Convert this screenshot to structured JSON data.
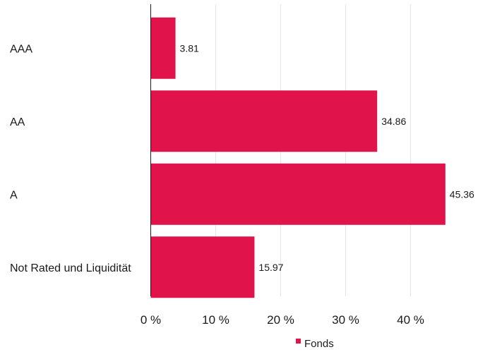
{
  "chart_data": {
    "type": "bar",
    "orientation": "horizontal",
    "categories": [
      "AAA",
      "AA",
      "A",
      "Not Rated und Liquidität"
    ],
    "series": [
      {
        "name": "Fonds",
        "values": [
          3.81,
          34.86,
          45.36,
          15.97
        ],
        "color": "#e0134a"
      }
    ],
    "data_labels": [
      "3.81",
      "34.86",
      "45.36",
      "15.97"
    ],
    "x_ticks": [
      0,
      10,
      20,
      30,
      40
    ],
    "x_tick_labels": [
      "0 %",
      "10 %",
      "20 %",
      "30 %",
      "40 %"
    ],
    "xlim": [
      0,
      47
    ],
    "grid": "vertical",
    "legend": {
      "position": "bottom-center",
      "entries": [
        "Fonds"
      ]
    },
    "title": "",
    "xlabel": "",
    "ylabel": ""
  }
}
